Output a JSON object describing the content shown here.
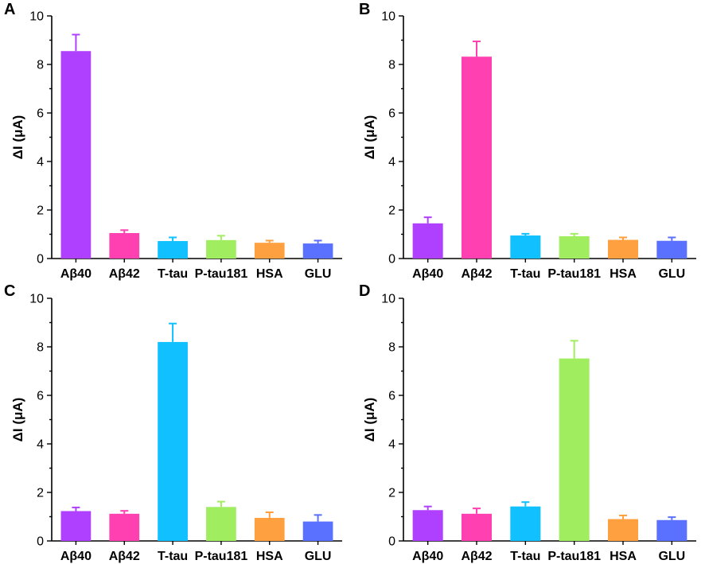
{
  "figure_title": "",
  "colors": {
    "Aβ40": "#b040ff",
    "Aβ42": "#ff40b0",
    "T-tau": "#10c0ff",
    "P-tau181": "#a0ee60",
    "HSA": "#ffa040",
    "GLU": "#5a70ff"
  },
  "chart_data": [
    {
      "type": "bar",
      "panel": "A",
      "title": "",
      "xlabel": "",
      "ylabel": "ΔI (μA)",
      "ylim": [
        0,
        10
      ],
      "yticks": [
        "0",
        "2",
        "4",
        "6",
        "8",
        "10"
      ],
      "categories": [
        "Aβ40",
        "Aβ42",
        "T-tau",
        "P-tau181",
        "HSA",
        "GLU"
      ],
      "values": [
        8.55,
        1.05,
        0.72,
        0.76,
        0.65,
        0.62
      ],
      "errors": [
        0.68,
        0.12,
        0.15,
        0.18,
        0.09,
        0.12
      ]
    },
    {
      "type": "bar",
      "panel": "B",
      "title": "",
      "xlabel": "",
      "ylabel": "ΔI (μA)",
      "ylim": [
        0,
        10
      ],
      "yticks": [
        "0",
        "2",
        "4",
        "6",
        "8",
        "10"
      ],
      "categories": [
        "Aβ40",
        "Aβ42",
        "T-tau",
        "P-tau181",
        "HSA",
        "GLU"
      ],
      "values": [
        1.45,
        8.32,
        0.95,
        0.92,
        0.77,
        0.73
      ],
      "errors": [
        0.25,
        0.63,
        0.07,
        0.1,
        0.1,
        0.14
      ]
    },
    {
      "type": "bar",
      "panel": "C",
      "title": "",
      "xlabel": "",
      "ylabel": "ΔI (μA)",
      "ylim": [
        0,
        10
      ],
      "yticks": [
        "0",
        "2",
        "4",
        "6",
        "8",
        "10"
      ],
      "categories": [
        "Aβ40",
        "Aβ42",
        "T-tau",
        "P-tau181",
        "HSA",
        "GLU"
      ],
      "values": [
        1.23,
        1.12,
        8.2,
        1.4,
        0.95,
        0.8
      ],
      "errors": [
        0.15,
        0.12,
        0.76,
        0.22,
        0.23,
        0.27
      ]
    },
    {
      "type": "bar",
      "panel": "D",
      "title": "",
      "xlabel": "",
      "ylabel": "ΔI (μA)",
      "ylim": [
        0,
        10
      ],
      "yticks": [
        "0",
        "2",
        "4",
        "6",
        "8",
        "10"
      ],
      "categories": [
        "Aβ40",
        "Aβ42",
        "T-tau",
        "P-tau181",
        "HSA",
        "GLU"
      ],
      "values": [
        1.27,
        1.12,
        1.42,
        7.52,
        0.9,
        0.86
      ],
      "errors": [
        0.15,
        0.22,
        0.18,
        0.73,
        0.15,
        0.12
      ]
    }
  ]
}
